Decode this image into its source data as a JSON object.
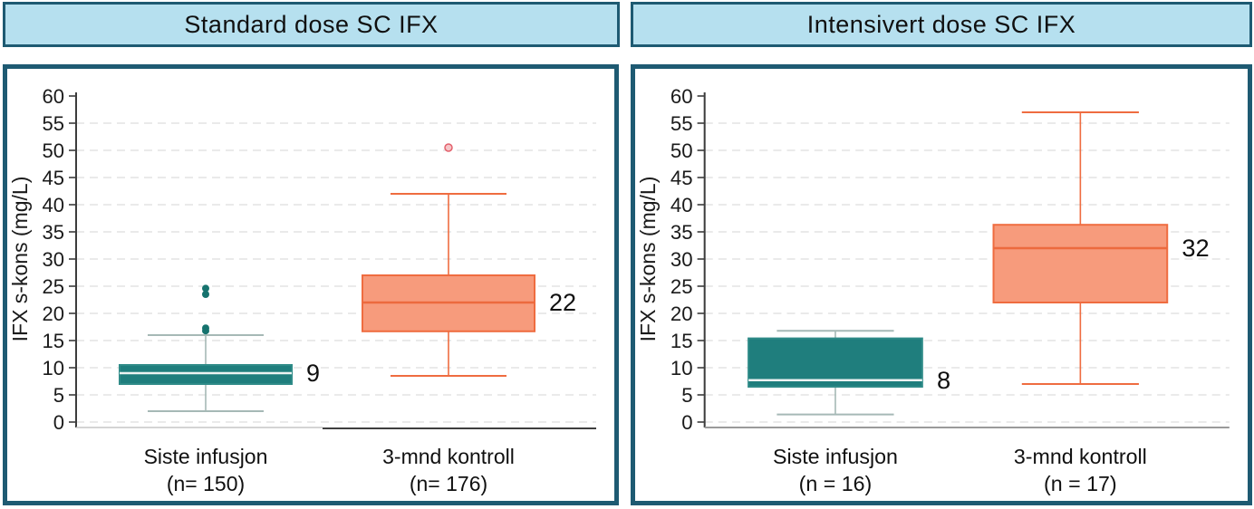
{
  "panels": [
    {
      "title": "Standard dose SC IFX"
    },
    {
      "title": "Intensivert dose SC IFX"
    }
  ],
  "colors": {
    "title_bg": "#b6e0ef",
    "frame_border": "#1e5a72",
    "gridline": "#e3e3e3",
    "axis": "#3c3c3c",
    "text": "#1a1a1a",
    "teal": {
      "fill": "#1f7e7d",
      "stroke": "#2f8b88",
      "median": "#edf3f2",
      "whisker": "#a6b9b6",
      "outlier_fill": "#16736e",
      "outlier_stroke": "#16736e",
      "outlier_stroke_width": 0
    },
    "orange": {
      "fill": "#f79b7c",
      "stroke": "#ef6c40",
      "median": "#ec6a3e",
      "whisker": "#ef6c40",
      "outlier_fill": "#f6c6c9",
      "outlier_stroke": "#e3606b",
      "outlier_stroke_width": 1.5
    }
  },
  "chart_data": [
    {
      "type": "box",
      "title": "Standard dose SC IFX",
      "ylabel": "IFX s-kons (mg/L)",
      "ylim": [
        0,
        60
      ],
      "ytick_step": 5,
      "grid": "dashed-horizontal",
      "groups": [
        {
          "category": "Siste infusjon",
          "n_label": "(n= 150)",
          "color_role": "teal",
          "whisker_low": 2,
          "q1": 7,
          "median": 9,
          "q3": 10.5,
          "whisker_high": 16,
          "outliers": [
            16.8,
            17.3,
            23.5,
            24.6
          ],
          "median_label": "9"
        },
        {
          "category": "3-mnd kontroll",
          "n_label": "(n= 176)",
          "color_role": "orange",
          "whisker_low": 8.5,
          "q1": 16.7,
          "median": 22,
          "q3": 27,
          "whisker_high": 42,
          "outliers": [
            50.5
          ],
          "median_label": "22"
        }
      ]
    },
    {
      "type": "box",
      "title": "Intensivert dose SC IFX",
      "ylabel": "IFX s-kons (mg/L)",
      "ylim": [
        0,
        60
      ],
      "ytick_step": 5,
      "grid": "dashed-horizontal",
      "groups": [
        {
          "category": "Siste infusjon",
          "n_label": "(n = 16)",
          "color_role": "teal",
          "whisker_low": 1.4,
          "q1": 6.5,
          "median": 7.7,
          "q3": 15.4,
          "whisker_high": 16.8,
          "outliers": [],
          "median_label": "8"
        },
        {
          "category": "3-mnd kontroll",
          "n_label": "(n = 17)",
          "color_role": "orange",
          "whisker_low": 7,
          "q1": 22,
          "median": 32,
          "q3": 36.3,
          "whisker_high": 57,
          "outliers": [],
          "median_label": "32"
        }
      ]
    }
  ]
}
